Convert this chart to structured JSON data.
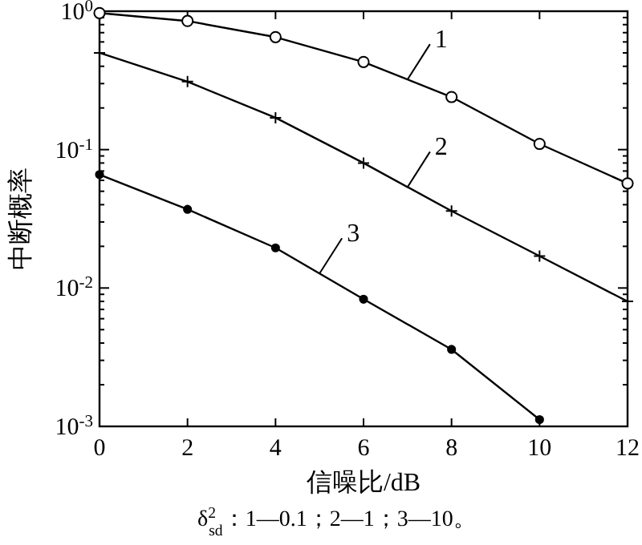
{
  "chart_data": {
    "type": "line",
    "xlabel": "信噪比/dB",
    "ylabel": "中断概率",
    "x": [
      0,
      2,
      4,
      6,
      8,
      10,
      12
    ],
    "xlim": [
      0,
      12
    ],
    "xticks": [
      0,
      2,
      4,
      6,
      8,
      10,
      12
    ],
    "ylim": [
      0.001,
      1
    ],
    "yticks": [
      {
        "value": 0.001,
        "label": "10$^{-3}$"
      },
      {
        "value": 0.01,
        "label": "10$^{-2}$"
      },
      {
        "value": 0.1,
        "label": "10$^{-1}$"
      },
      {
        "value": 1,
        "label": "10$^{0}$"
      }
    ],
    "log": "y",
    "grid": false,
    "line_style": "solid",
    "series": [
      {
        "name": "1",
        "color": "#000000",
        "marker": "circle",
        "values": [
          0.97,
          0.85,
          0.65,
          0.43,
          0.24,
          0.11,
          0.057
        ]
      },
      {
        "name": "2",
        "color": "#000000",
        "marker": "cross",
        "values": [
          0.5,
          0.31,
          0.17,
          0.08,
          0.036,
          0.017,
          0.008
        ]
      },
      {
        "name": "3",
        "color": "#000000",
        "marker": "circle",
        "values": [
          0.066,
          0.037,
          0.0195,
          0.0083,
          0.0036,
          0.00112,
          null
        ]
      }
    ],
    "annotations": [
      "δ$^{2}$$_{sd}$：1—0.1；2—1；3—10。"
    ]
  }
}
